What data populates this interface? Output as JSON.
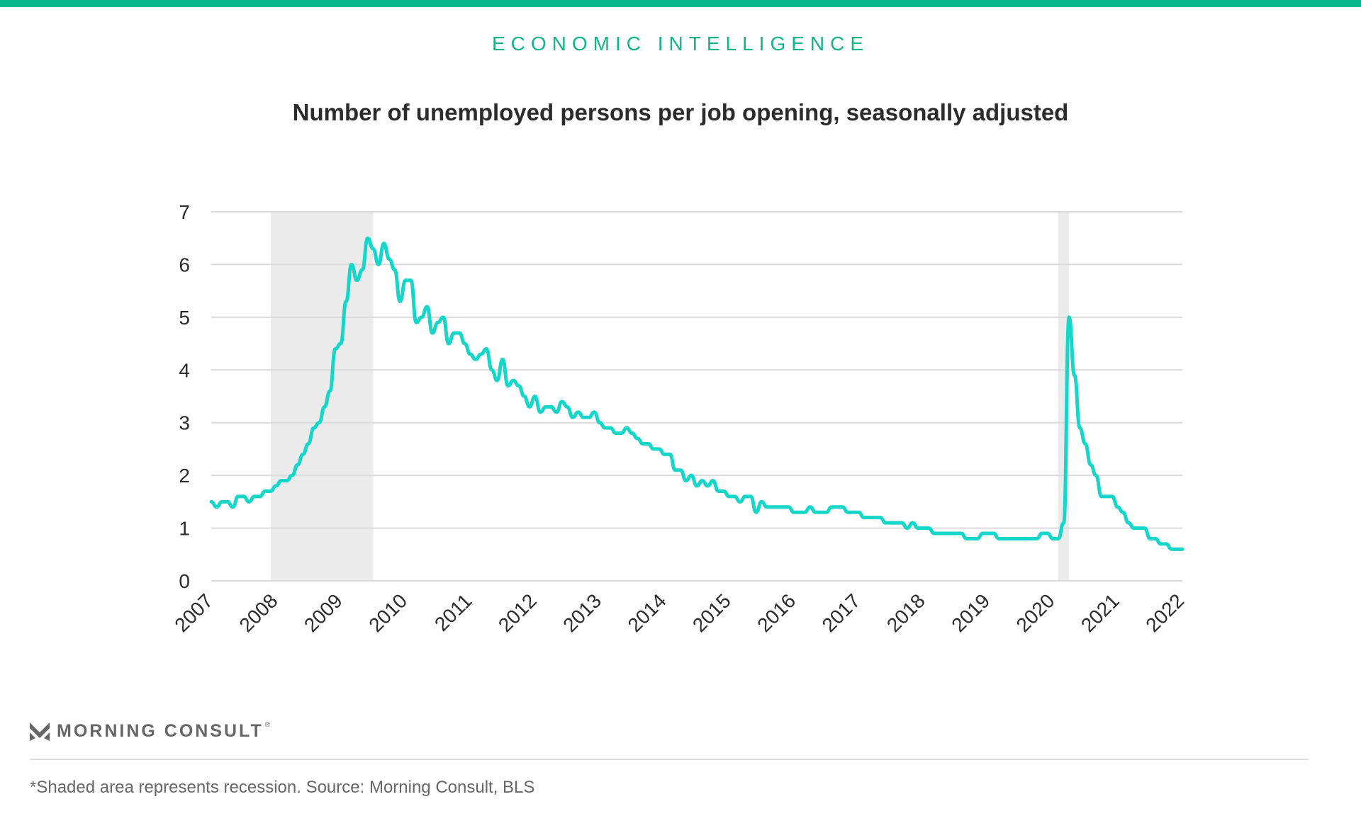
{
  "header": {
    "eyebrow": "ECONOMIC INTELLIGENCE",
    "accent_color": "#0ab98b"
  },
  "chart_data": {
    "type": "line",
    "title": "Number of unemployed persons per job opening, seasonally adjusted",
    "xlabel": "",
    "ylabel": "",
    "ylim": [
      0,
      7
    ],
    "xlim": [
      2007,
      2022
    ],
    "yticks": [
      "0",
      "1",
      "2",
      "3",
      "4",
      "5",
      "6",
      "7"
    ],
    "xticks": [
      "2007",
      "2008",
      "2009",
      "2010",
      "2011",
      "2012",
      "2013",
      "2014",
      "2015",
      "2016",
      "2017",
      "2018",
      "2019",
      "2020",
      "2021",
      "2022"
    ],
    "grid": true,
    "line_color": "#14d6c9",
    "recession_shading": [
      [
        2007.92,
        2009.5
      ],
      [
        2020.08,
        2020.25
      ]
    ],
    "series": [
      {
        "name": "Unemployed persons per job opening",
        "start": 2007,
        "frequency": "monthly",
        "values": [
          1.5,
          1.4,
          1.5,
          1.5,
          1.4,
          1.6,
          1.6,
          1.5,
          1.6,
          1.6,
          1.7,
          1.7,
          1.8,
          1.9,
          1.9,
          2.0,
          2.2,
          2.4,
          2.6,
          2.9,
          3.0,
          3.3,
          3.6,
          4.4,
          4.5,
          5.3,
          6.0,
          5.7,
          5.9,
          6.5,
          6.3,
          6.0,
          6.4,
          6.1,
          5.9,
          5.3,
          5.7,
          5.7,
          4.9,
          5.0,
          5.2,
          4.7,
          4.9,
          5.0,
          4.5,
          4.7,
          4.7,
          4.5,
          4.3,
          4.2,
          4.3,
          4.4,
          4.0,
          3.8,
          4.2,
          3.7,
          3.8,
          3.7,
          3.5,
          3.3,
          3.5,
          3.2,
          3.3,
          3.3,
          3.2,
          3.4,
          3.3,
          3.1,
          3.2,
          3.1,
          3.1,
          3.2,
          3.0,
          2.9,
          2.9,
          2.8,
          2.8,
          2.9,
          2.8,
          2.7,
          2.6,
          2.6,
          2.5,
          2.5,
          2.4,
          2.4,
          2.1,
          2.1,
          1.9,
          2.0,
          1.8,
          1.9,
          1.8,
          1.9,
          1.7,
          1.7,
          1.6,
          1.6,
          1.5,
          1.6,
          1.6,
          1.3,
          1.5,
          1.4,
          1.4,
          1.4,
          1.4,
          1.4,
          1.3,
          1.3,
          1.3,
          1.4,
          1.3,
          1.3,
          1.3,
          1.4,
          1.4,
          1.4,
          1.3,
          1.3,
          1.3,
          1.2,
          1.2,
          1.2,
          1.2,
          1.1,
          1.1,
          1.1,
          1.1,
          1.0,
          1.1,
          1.0,
          1.0,
          1.0,
          0.9,
          0.9,
          0.9,
          0.9,
          0.9,
          0.9,
          0.8,
          0.8,
          0.8,
          0.9,
          0.9,
          0.9,
          0.8,
          0.8,
          0.8,
          0.8,
          0.8,
          0.8,
          0.8,
          0.8,
          0.9,
          0.9,
          0.8,
          0.8,
          1.1,
          5.0,
          3.9,
          2.9,
          2.6,
          2.2,
          2.0,
          1.6,
          1.6,
          1.6,
          1.4,
          1.3,
          1.1,
          1.0,
          1.0,
          1.0,
          0.8,
          0.8,
          0.7,
          0.7,
          0.6,
          0.6,
          0.6
        ]
      }
    ]
  },
  "footer": {
    "logo_text": "MORNING CONSULT",
    "logo_reg": "®",
    "source": "*Shaded area represents recession. Source: Morning Consult, BLS"
  }
}
